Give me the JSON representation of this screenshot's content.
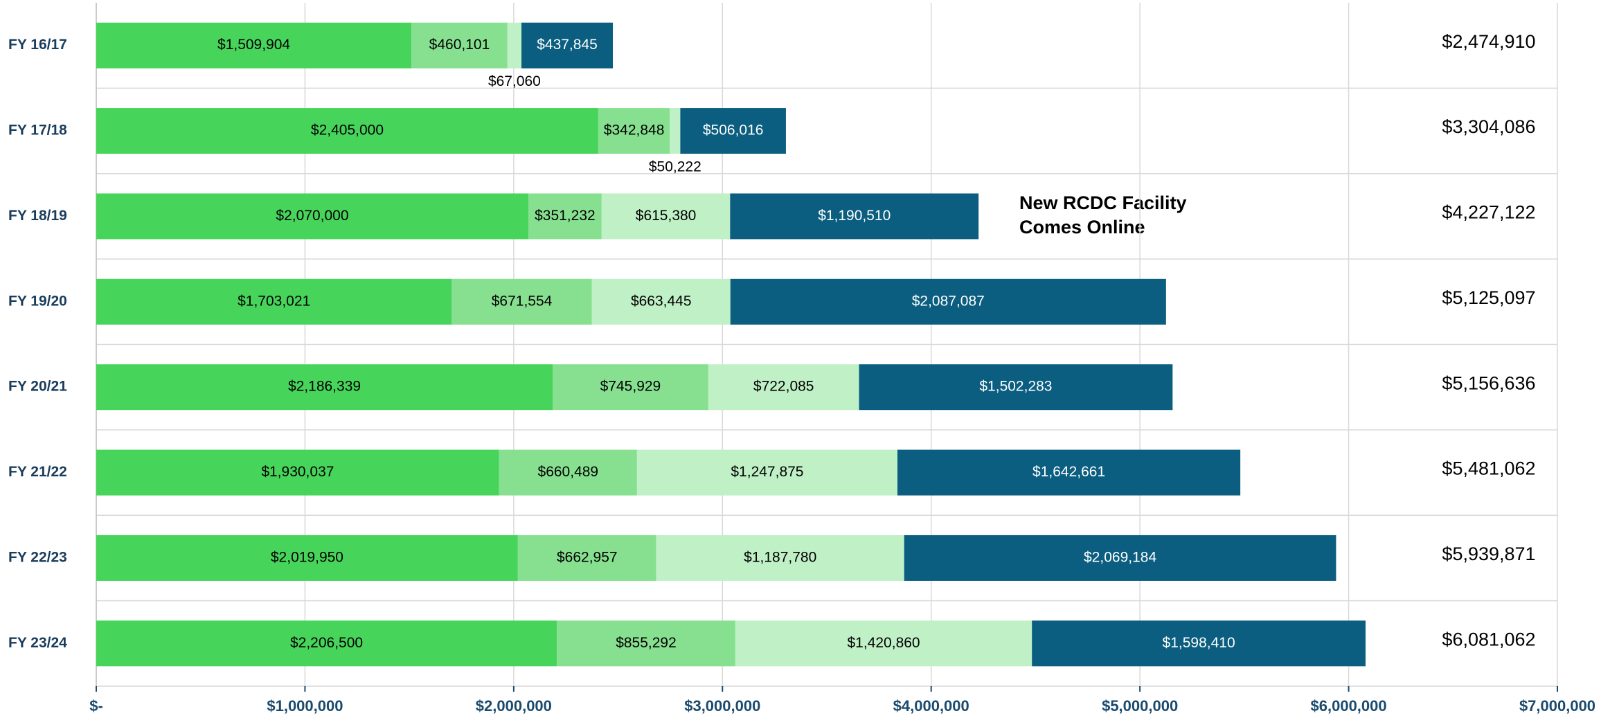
{
  "chart_data": {
    "type": "stacked_barh",
    "annotation": [
      "New RCDC Facility",
      "Comes Online"
    ],
    "categories": [
      "FY 16/17",
      "FY 17/18",
      "FY 18/19",
      "FY 19/20",
      "FY 20/21",
      "FY 21/22",
      "FY 22/23",
      "FY 23/24"
    ],
    "series": [
      {
        "color": "#47d45b",
        "label_color": "#000000",
        "values": [
          1509904,
          2405000,
          2070000,
          1703021,
          2186339,
          1930037,
          2019950,
          2206500
        ],
        "value_labels": [
          "$1,509,904",
          "$2,405,000",
          "$2,070,000",
          "$1,703,021",
          "$2,186,339",
          "$1,930,037",
          "$2,019,950",
          "$2,206,500"
        ]
      },
      {
        "color": "#86e08f",
        "label_color": "#000000",
        "values": [
          460101,
          342848,
          351232,
          671554,
          745929,
          660489,
          662957,
          855292
        ],
        "value_labels": [
          "$460,101",
          "$342,848",
          "$351,232",
          "$671,554",
          "$745,929",
          "$660,489",
          "$662,957",
          "$855,292"
        ]
      },
      {
        "color": "#c0f0c6",
        "label_color": "#000000",
        "values": [
          67060,
          50222,
          615380,
          663445,
          722085,
          1247875,
          1187780,
          1420860
        ],
        "value_labels": [
          "$67,060",
          "$50,222",
          "$615,380",
          "$663,445",
          "$722,085",
          "$1,247,875",
          "$1,187,780",
          "$1,420,860"
        ]
      },
      {
        "color": "#0b5e80",
        "label_color": "#ffffff",
        "values": [
          437845,
          506016,
          1190510,
          2087087,
          1502283,
          1642661,
          2069184,
          1598410
        ],
        "value_labels": [
          "$437,845",
          "$506,016",
          "$1,190,510",
          "$2,087,087",
          "$1,502,283",
          "$1,642,661",
          "$2,069,184",
          "$1,598,410"
        ]
      }
    ],
    "totals": [
      2474910,
      3304086,
      4227122,
      5125097,
      5156636,
      5481062,
      5939871,
      6081062
    ],
    "total_labels": [
      "$2,474,910",
      "$3,304,086",
      "$4,227,122",
      "$5,125,097",
      "$5,156,636",
      "$5,481,062",
      "$5,939,871",
      "$6,081,062"
    ],
    "xlim": [
      0,
      7000000
    ],
    "xticks": [
      {
        "value": 0,
        "label": "$-"
      },
      {
        "value": 1000000,
        "label": "$1,000,000"
      },
      {
        "value": 2000000,
        "label": "$2,000,000"
      },
      {
        "value": 3000000,
        "label": "$3,000,000"
      },
      {
        "value": 4000000,
        "label": "$4,000,000"
      },
      {
        "value": 5000000,
        "label": "$5,000,000"
      },
      {
        "value": 6000000,
        "label": "$6,000,000"
      },
      {
        "value": 7000000,
        "label": "$7,000,000"
      }
    ],
    "grid": true
  }
}
